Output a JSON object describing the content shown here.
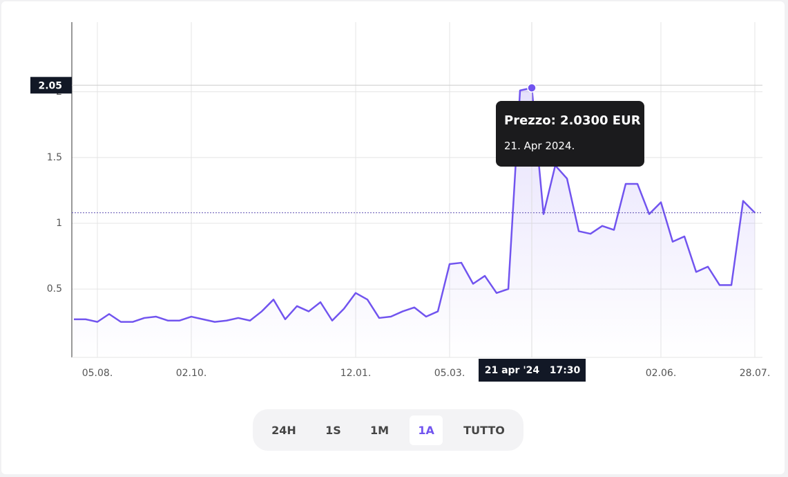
{
  "chart_data": {
    "type": "line",
    "categories": [
      null,
      null,
      "05.08.",
      null,
      null,
      null,
      null,
      null,
      null,
      null,
      "02.10.",
      null,
      null,
      null,
      null,
      null,
      null,
      null,
      null,
      null,
      null,
      null,
      null,
      null,
      "12.01.",
      null,
      null,
      null,
      null,
      null,
      null,
      null,
      "05.03.",
      null,
      null,
      null,
      null,
      null,
      null,
      null,
      null,
      null,
      null,
      null,
      null,
      null,
      null,
      null,
      null,
      null,
      "02.06.",
      null,
      null,
      null,
      null,
      null,
      null,
      null,
      "28.07."
    ],
    "values": [
      0.27,
      0.27,
      0.25,
      0.31,
      0.25,
      0.25,
      0.28,
      0.29,
      0.26,
      0.26,
      0.29,
      0.27,
      0.25,
      0.26,
      0.28,
      0.26,
      0.33,
      0.42,
      0.27,
      0.37,
      0.33,
      0.4,
      0.26,
      0.35,
      0.47,
      0.42,
      0.28,
      0.29,
      0.33,
      0.36,
      0.29,
      0.33,
      0.69,
      0.7,
      0.54,
      0.6,
      0.47,
      0.5,
      2.01,
      2.03,
      1.07,
      1.44,
      1.34,
      0.94,
      0.92,
      0.98,
      0.95,
      1.3,
      1.3,
      1.07,
      1.16,
      0.86,
      0.9,
      0.63,
      0.67,
      0.53,
      0.53,
      1.17,
      1.08
    ],
    "color": "#7154ef",
    "ylim": [
      -0.02,
      2.53
    ],
    "yticks": [
      0.5,
      1,
      1.5,
      2
    ],
    "grid": true,
    "reference_line": 1.08,
    "crosshair_y": 2.05,
    "crosshair_x_label": "21 apr '24   17:30",
    "highlight_index": 39
  },
  "tooltip": {
    "price": "Prezzo: 2.0300 EUR",
    "date": "21. Apr 2024."
  },
  "range_buttons": [
    "24H",
    "1S",
    "1M",
    "1A",
    "TUTTO"
  ],
  "active_button": "1A"
}
